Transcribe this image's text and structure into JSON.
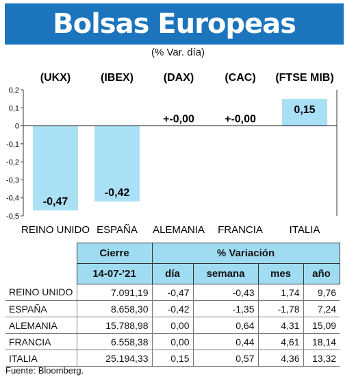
{
  "header": {
    "title": "Bolsas Europeas",
    "subtitle": "(% Var. día)"
  },
  "chart_data": {
    "type": "bar",
    "categories": [
      "REINO UNIDO",
      "ESPAÑA",
      "ALEMANIA",
      "FRANCIA",
      "ITALIA"
    ],
    "codes": [
      "(UKX)",
      "(IBEX)",
      "(DAX)",
      "(CAC)",
      "(FTSE MIB)"
    ],
    "values": [
      -0.47,
      -0.42,
      0.0,
      0.0,
      0.15
    ],
    "value_labels": [
      "-0,47",
      "-0,42",
      "+-0,00",
      "+-0,00",
      "0,15"
    ],
    "yticks": [
      "0,2",
      "0,1",
      "0",
      "-0,1",
      "-0,2",
      "-0,3",
      "-0,4",
      "-0,5"
    ],
    "ylim": [
      -0.5,
      0.2
    ],
    "bar_color": "#a9e0f5",
    "grid": false
  },
  "table": {
    "header_cierre": "Cierre",
    "header_variacion": "% Variación",
    "date": "14-07-'21",
    "sub_headers": [
      "día",
      "semana",
      "mes",
      "año"
    ],
    "rows": [
      {
        "name": "REINO UNIDO",
        "cierre": "7.091,19",
        "dia": "-0,47",
        "semana": "-0,43",
        "mes": "1,74",
        "ano": "9,76"
      },
      {
        "name": "ESPAÑA",
        "cierre": "8.658,30",
        "dia": "-0,42",
        "semana": "-1,35",
        "mes": "-1,78",
        "ano": "7,24"
      },
      {
        "name": "ALEMANIA",
        "cierre": "15.788,98",
        "dia": "0,00",
        "semana": "0,64",
        "mes": "4,31",
        "ano": "15,09"
      },
      {
        "name": "FRANCIA",
        "cierre": "6.558,38",
        "dia": "0,00",
        "semana": "0,44",
        "mes": "4,61",
        "ano": "18,14"
      },
      {
        "name": "ITALIA",
        "cierre": "25.194,33",
        "dia": "0,15",
        "semana": "0,57",
        "mes": "4,36",
        "ano": "13,32"
      }
    ]
  },
  "source": "Fuente: Bloomberg.",
  "colors": {
    "banner": "#1c74bd",
    "header_cells": "#9fdcf2"
  }
}
